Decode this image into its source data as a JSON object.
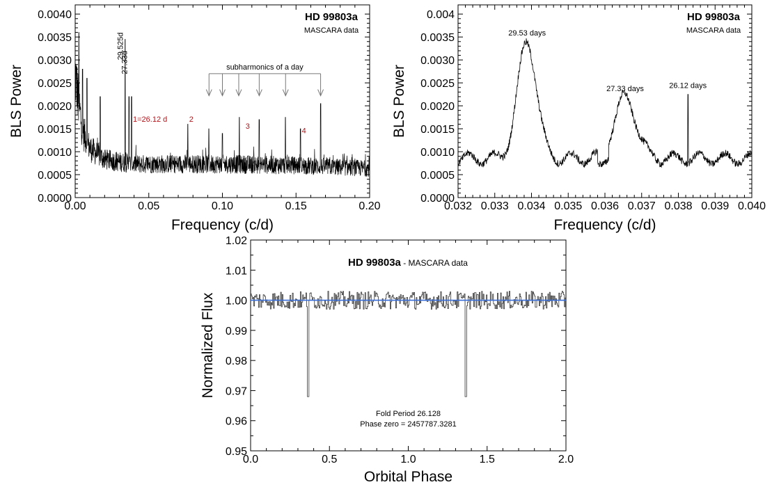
{
  "chart_data": [
    {
      "id": "panel-periodogram-wide",
      "type": "line",
      "title": "HD 99803a",
      "subtitle": "MASCARA data",
      "xlabel": "Frequency (c/d)",
      "ylabel": "BLS Power",
      "xlim": [
        0.0,
        0.2
      ],
      "ylim": [
        0.0,
        0.0042
      ],
      "xticks": [
        0.0,
        0.05,
        0.1,
        0.15,
        0.2
      ],
      "xtick_labels": [
        "0.00",
        "0.05",
        "0.10",
        "0.15",
        "0.20"
      ],
      "yticks": [
        0.0,
        0.0005,
        0.001,
        0.0015,
        0.002,
        0.0025,
        0.003,
        0.0035,
        0.004
      ],
      "ytick_labels": [
        "0.0000",
        "0.0005",
        "0.0010",
        "0.0015",
        "0.0020",
        "0.0025",
        "0.0030",
        "0.0035",
        "0.0040"
      ],
      "noise_floor": [
        [
          0.0,
          0.0028
        ],
        [
          0.002,
          0.0022
        ],
        [
          0.005,
          0.0015
        ],
        [
          0.01,
          0.0011
        ],
        [
          0.02,
          0.00085
        ],
        [
          0.04,
          0.00075
        ],
        [
          0.1,
          0.00075
        ],
        [
          0.15,
          0.00072
        ],
        [
          0.2,
          0.00065
        ]
      ],
      "peaks": [
        {
          "x": 0.0025,
          "y": 0.0036
        },
        {
          "x": 0.005,
          "y": 0.0028
        },
        {
          "x": 0.008,
          "y": 0.0026
        },
        {
          "x": 0.017,
          "y": 0.0022
        },
        {
          "x": 0.0339,
          "y": 0.00345
        },
        {
          "x": 0.0366,
          "y": 0.0022
        },
        {
          "x": 0.0383,
          "y": 0.0022
        },
        {
          "x": 0.0765,
          "y": 0.0016
        },
        {
          "x": 0.0908,
          "y": 0.0015
        },
        {
          "x": 0.1,
          "y": 0.0014
        },
        {
          "x": 0.1115,
          "y": 0.00175
        },
        {
          "x": 0.125,
          "y": 0.0017
        },
        {
          "x": 0.1428,
          "y": 0.00175
        },
        {
          "x": 0.153,
          "y": 0.0015
        },
        {
          "x": 0.1667,
          "y": 0.00205
        }
      ],
      "annotations": {
        "peak_labels": [
          {
            "text": "29.525d",
            "x": 0.0339,
            "y": 0.0036
          },
          {
            "text": "27.33d",
            "x": 0.0366,
            "y": 0.0032
          }
        ],
        "harmonic_labels": [
          {
            "text": "1=26.12 d",
            "x": 0.0383,
            "y": 0.00165
          },
          {
            "text": "2",
            "x": 0.0765,
            "y": 0.00165
          },
          {
            "text": "3",
            "x": 0.1148,
            "y": 0.0015
          },
          {
            "text": "4",
            "x": 0.153,
            "y": 0.0014
          }
        ],
        "bracket_label": "subharmonics of a day",
        "bracket_y": 0.0027,
        "arrow_tip_y": 0.00222,
        "subharmonic_arrows": [
          0.0909,
          0.1,
          0.1111,
          0.125,
          0.1429,
          0.1667
        ]
      }
    },
    {
      "id": "panel-periodogram-zoom",
      "type": "line",
      "title": "HD 99803a",
      "subtitle": "MASCARA data",
      "xlabel": "Frequency (c/d)",
      "ylabel": "BLS Power",
      "xlim": [
        0.032,
        0.04
      ],
      "ylim": [
        0.0,
        0.0042
      ],
      "xticks": [
        0.032,
        0.033,
        0.034,
        0.035,
        0.036,
        0.037,
        0.038,
        0.039,
        0.04
      ],
      "xtick_labels": [
        "0.032",
        "0.033",
        "0.034",
        "0.035",
        "0.036",
        "0.037",
        "0.038",
        "0.039",
        "0.040"
      ],
      "yticks": [
        0.0,
        0.0005,
        0.001,
        0.0015,
        0.002,
        0.0025,
        0.003,
        0.0035,
        0.004
      ],
      "ytick_labels": [
        "0.0000",
        "0.0005",
        "0.0010",
        "0.0015",
        "0.0020",
        "0.0025",
        "0.0030",
        "0.0035",
        "0.004"
      ],
      "baseline": 0.00085,
      "peaks": [
        {
          "x": 0.03388,
          "y": 0.0034,
          "width": 0.00026,
          "label": "29.53 days"
        },
        {
          "x": 0.03655,
          "y": 0.00218,
          "width": 0.0003,
          "label": "27.33 days"
        },
        {
          "x": 0.03826,
          "y": 0.00225,
          "width": 1.5e-05,
          "label": "26.12 days"
        }
      ]
    },
    {
      "id": "panel-folded-lightcurve",
      "type": "line",
      "title": "HD 99803a",
      "subtitle": "- MASCARA data",
      "xlabel": "Orbital Phase",
      "ylabel": "Normalized Flux",
      "xlim": [
        0.0,
        2.0
      ],
      "ylim": [
        0.95,
        1.02
      ],
      "xticks": [
        0.0,
        0.5,
        1.0,
        1.5,
        2.0
      ],
      "xtick_labels": [
        "0.0",
        "0.5",
        "1.0",
        "1.5",
        "2.0"
      ],
      "yticks": [
        0.95,
        0.96,
        0.97,
        0.98,
        0.99,
        1.0,
        1.01,
        1.02
      ],
      "ytick_labels": [
        "0.95",
        "0.96",
        "0.97",
        "0.98",
        "0.99",
        "1.00",
        "1.01",
        "1.02"
      ],
      "mean_flux": 1.0,
      "scatter": 0.003,
      "transits": [
        {
          "phase": 0.365,
          "depth_flux": 0.968
        },
        {
          "phase": 1.365,
          "depth_flux": 0.968
        }
      ],
      "reference_line": {
        "y": 1.0,
        "color": "#3a6fd8"
      },
      "notes": [
        "Fold Period  26.128",
        "Phase zero = 2457787.3281"
      ]
    }
  ]
}
